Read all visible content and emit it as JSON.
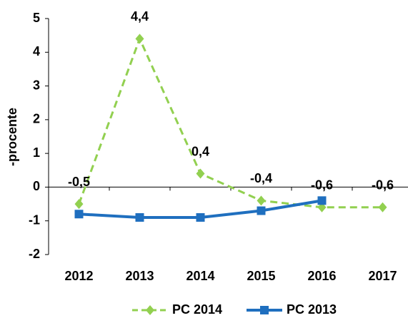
{
  "chart_data": {
    "type": "line",
    "y_label": "-procente",
    "categories": [
      "2012",
      "2013",
      "2014",
      "2015",
      "2016",
      "2017"
    ],
    "series": [
      {
        "name": "PC 2014",
        "color": "#92d050",
        "dash": true,
        "marker": "diamond",
        "values": [
          -0.5,
          4.4,
          0.4,
          -0.4,
          -0.6,
          -0.6
        ],
        "value_labels": [
          "-0,5",
          "4,4",
          "0,4",
          "-0,4",
          "-0,6",
          "-0,6"
        ]
      },
      {
        "name": "PC 2013",
        "color": "#1f6fbf",
        "dash": false,
        "marker": "square",
        "values": [
          -0.8,
          -0.9,
          -0.9,
          -0.7,
          -0.4,
          null
        ]
      }
    ],
    "ylim": [
      -2,
      5
    ],
    "yticks": [
      -2,
      -1,
      0,
      1,
      2,
      3,
      4,
      5
    ]
  }
}
